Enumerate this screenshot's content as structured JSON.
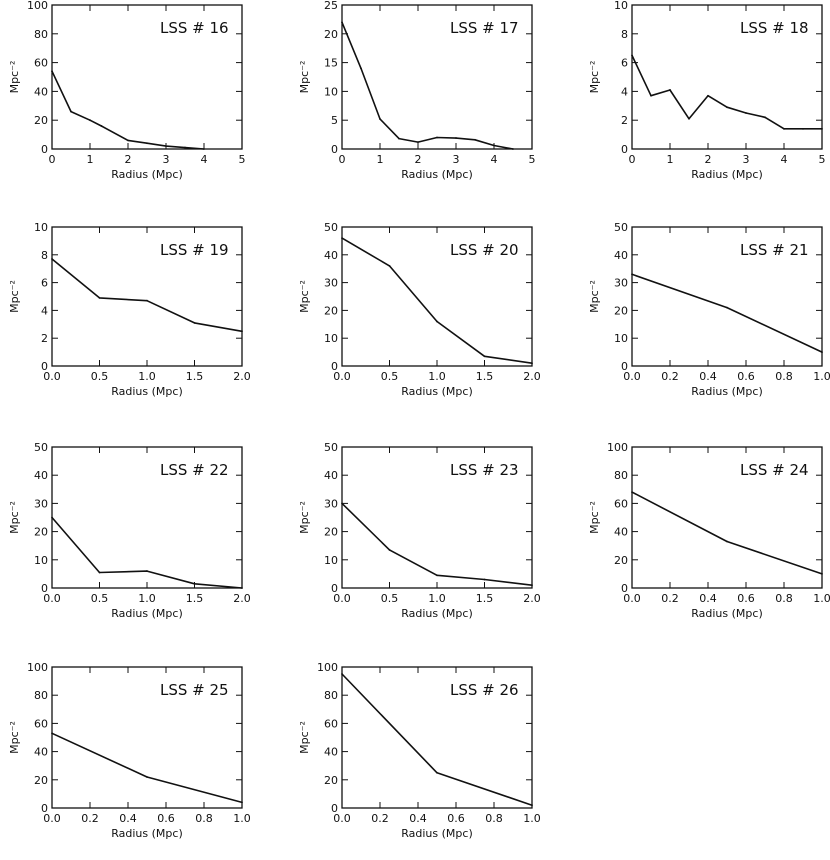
{
  "chart_data": [
    {
      "type": "line",
      "title": "LSS # 16",
      "xlabel": "Radius (Mpc)",
      "ylabel": "Mpc⁻²",
      "xlim": [
        0,
        5
      ],
      "ylim": [
        0,
        100
      ],
      "xticks": [
        0,
        1,
        2,
        3,
        4,
        5
      ],
      "xtick_labels": [
        "0",
        "1",
        "2",
        "3",
        "4",
        "5"
      ],
      "yticks": [
        0,
        20,
        40,
        60,
        80,
        100
      ],
      "ytick_labels": [
        "0",
        "20",
        "40",
        "60",
        "80",
        "100"
      ],
      "x": [
        0,
        0.5,
        1,
        1.3,
        2,
        2.5,
        3,
        3.5,
        4
      ],
      "y": [
        54,
        26,
        20,
        16,
        6,
        4,
        2,
        1,
        0
      ]
    },
    {
      "type": "line",
      "title": "LSS # 17",
      "xlabel": "Radius (Mpc)",
      "ylabel": "Mpc⁻²",
      "xlim": [
        0,
        5
      ],
      "ylim": [
        0,
        25
      ],
      "xticks": [
        0,
        1,
        2,
        3,
        4,
        5
      ],
      "xtick_labels": [
        "0",
        "1",
        "2",
        "3",
        "4",
        "5"
      ],
      "yticks": [
        0,
        5,
        10,
        15,
        20,
        25
      ],
      "ytick_labels": [
        "0",
        "5",
        "10",
        "15",
        "20",
        "25"
      ],
      "x": [
        0,
        0.5,
        1,
        1.5,
        2,
        2.5,
        3,
        3.5,
        4,
        4.5
      ],
      "y": [
        22,
        14,
        5.2,
        1.8,
        1.2,
        2,
        1.9,
        1.6,
        0.6,
        0
      ]
    },
    {
      "type": "line",
      "title": "LSS # 18",
      "xlabel": "Radius (Mpc)",
      "ylabel": "Mpc⁻²",
      "xlim": [
        0,
        5
      ],
      "ylim": [
        0,
        10
      ],
      "xticks": [
        0,
        1,
        2,
        3,
        4,
        5
      ],
      "xtick_labels": [
        "0",
        "1",
        "2",
        "3",
        "4",
        "5"
      ],
      "yticks": [
        0,
        2,
        4,
        6,
        8,
        10
      ],
      "ytick_labels": [
        "0",
        "2",
        "4",
        "6",
        "8",
        "10"
      ],
      "x": [
        0,
        0.5,
        1,
        1.5,
        2,
        2.5,
        3,
        3.5,
        4,
        4.5,
        5
      ],
      "y": [
        6.5,
        3.7,
        4.1,
        2.1,
        3.7,
        2.9,
        2.5,
        2.2,
        1.4,
        1.4,
        1.4
      ]
    },
    {
      "type": "line",
      "title": "LSS # 19",
      "xlabel": "Radius (Mpc)",
      "ylabel": "Mpc⁻²",
      "xlim": [
        0,
        2
      ],
      "ylim": [
        0,
        10
      ],
      "xticks": [
        0,
        0.5,
        1,
        1.5,
        2
      ],
      "xtick_labels": [
        "0.0",
        "0.5",
        "1.0",
        "1.5",
        "2.0"
      ],
      "yticks": [
        0,
        2,
        4,
        6,
        8,
        10
      ],
      "ytick_labels": [
        "0",
        "2",
        "4",
        "6",
        "8",
        "10"
      ],
      "x": [
        0,
        0.5,
        1,
        1.5,
        2
      ],
      "y": [
        7.7,
        4.9,
        4.7,
        3.1,
        2.5
      ]
    },
    {
      "type": "line",
      "title": "LSS # 20",
      "xlabel": "Radius (Mpc)",
      "ylabel": "Mpc⁻²",
      "xlim": [
        0,
        2
      ],
      "ylim": [
        0,
        50
      ],
      "xticks": [
        0,
        0.5,
        1,
        1.5,
        2
      ],
      "xtick_labels": [
        "0.0",
        "0.5",
        "1.0",
        "1.5",
        "2.0"
      ],
      "yticks": [
        0,
        10,
        20,
        30,
        40,
        50
      ],
      "ytick_labels": [
        "0",
        "10",
        "20",
        "30",
        "40",
        "50"
      ],
      "x": [
        0,
        0.5,
        1,
        1.5,
        2
      ],
      "y": [
        46,
        36,
        16,
        3.5,
        1
      ]
    },
    {
      "type": "line",
      "title": "LSS # 21",
      "xlabel": "Radius (Mpc)",
      "ylabel": "Mpc⁻²",
      "xlim": [
        0,
        1
      ],
      "ylim": [
        0,
        50
      ],
      "xticks": [
        0,
        0.2,
        0.4,
        0.6,
        0.8,
        1
      ],
      "xtick_labels": [
        "0.0",
        "0.2",
        "0.4",
        "0.6",
        "0.8",
        "1.0"
      ],
      "yticks": [
        0,
        10,
        20,
        30,
        40,
        50
      ],
      "ytick_labels": [
        "0",
        "10",
        "20",
        "30",
        "40",
        "50"
      ],
      "x": [
        0,
        0.5,
        1
      ],
      "y": [
        33,
        21,
        5
      ]
    },
    {
      "type": "line",
      "title": "LSS # 22",
      "xlabel": "Radius (Mpc)",
      "ylabel": "Mpc⁻²",
      "xlim": [
        0,
        2
      ],
      "ylim": [
        0,
        50
      ],
      "xticks": [
        0,
        0.5,
        1,
        1.5,
        2
      ],
      "xtick_labels": [
        "0.0",
        "0.5",
        "1.0",
        "1.5",
        "2.0"
      ],
      "yticks": [
        0,
        10,
        20,
        30,
        40,
        50
      ],
      "ytick_labels": [
        "0",
        "10",
        "20",
        "30",
        "40",
        "50"
      ],
      "x": [
        0,
        0.5,
        1,
        1.5,
        2
      ],
      "y": [
        25,
        5.5,
        6,
        1.5,
        0
      ]
    },
    {
      "type": "line",
      "title": "LSS # 23",
      "xlabel": "Radius (Mpc)",
      "ylabel": "Mpc⁻²",
      "xlim": [
        0,
        2
      ],
      "ylim": [
        0,
        50
      ],
      "xticks": [
        0,
        0.5,
        1,
        1.5,
        2
      ],
      "xtick_labels": [
        "0.0",
        "0.5",
        "1.0",
        "1.5",
        "2.0"
      ],
      "yticks": [
        0,
        10,
        20,
        30,
        40,
        50
      ],
      "ytick_labels": [
        "0",
        "10",
        "20",
        "30",
        "40",
        "50"
      ],
      "x": [
        0,
        0.5,
        1,
        1.5,
        2
      ],
      "y": [
        30,
        13.5,
        4.5,
        3,
        1
      ]
    },
    {
      "type": "line",
      "title": "LSS # 24",
      "xlabel": "Radius (Mpc)",
      "ylabel": "Mpc⁻²",
      "xlim": [
        0,
        1
      ],
      "ylim": [
        0,
        100
      ],
      "xticks": [
        0,
        0.2,
        0.4,
        0.6,
        0.8,
        1
      ],
      "xtick_labels": [
        "0.0",
        "0.2",
        "0.4",
        "0.6",
        "0.8",
        "1.0"
      ],
      "yticks": [
        0,
        20,
        40,
        60,
        80,
        100
      ],
      "ytick_labels": [
        "0",
        "20",
        "40",
        "60",
        "80",
        "100"
      ],
      "x": [
        0,
        0.5,
        1
      ],
      "y": [
        68,
        33,
        10
      ]
    },
    {
      "type": "line",
      "title": "LSS # 25",
      "xlabel": "Radius (Mpc)",
      "ylabel": "Mpc⁻²",
      "xlim": [
        0,
        1
      ],
      "ylim": [
        0,
        100
      ],
      "xticks": [
        0,
        0.2,
        0.4,
        0.6,
        0.8,
        1
      ],
      "xtick_labels": [
        "0.0",
        "0.2",
        "0.4",
        "0.6",
        "0.8",
        "1.0"
      ],
      "yticks": [
        0,
        20,
        40,
        60,
        80,
        100
      ],
      "ytick_labels": [
        "0",
        "20",
        "40",
        "60",
        "80",
        "100"
      ],
      "x": [
        0,
        0.5,
        1
      ],
      "y": [
        53,
        22,
        4
      ]
    },
    {
      "type": "line",
      "title": "LSS # 26",
      "xlabel": "Radius (Mpc)",
      "ylabel": "Mpc⁻²",
      "xlim": [
        0,
        1
      ],
      "ylim": [
        0,
        100
      ],
      "xticks": [
        0,
        0.2,
        0.4,
        0.6,
        0.8,
        1
      ],
      "xtick_labels": [
        "0.0",
        "0.2",
        "0.4",
        "0.6",
        "0.8",
        "1.0"
      ],
      "yticks": [
        0,
        20,
        40,
        60,
        80,
        100
      ],
      "ytick_labels": [
        "0",
        "20",
        "40",
        "60",
        "80",
        "100"
      ],
      "x": [
        0,
        0.5,
        1
      ],
      "y": [
        95,
        25,
        2
      ]
    }
  ]
}
